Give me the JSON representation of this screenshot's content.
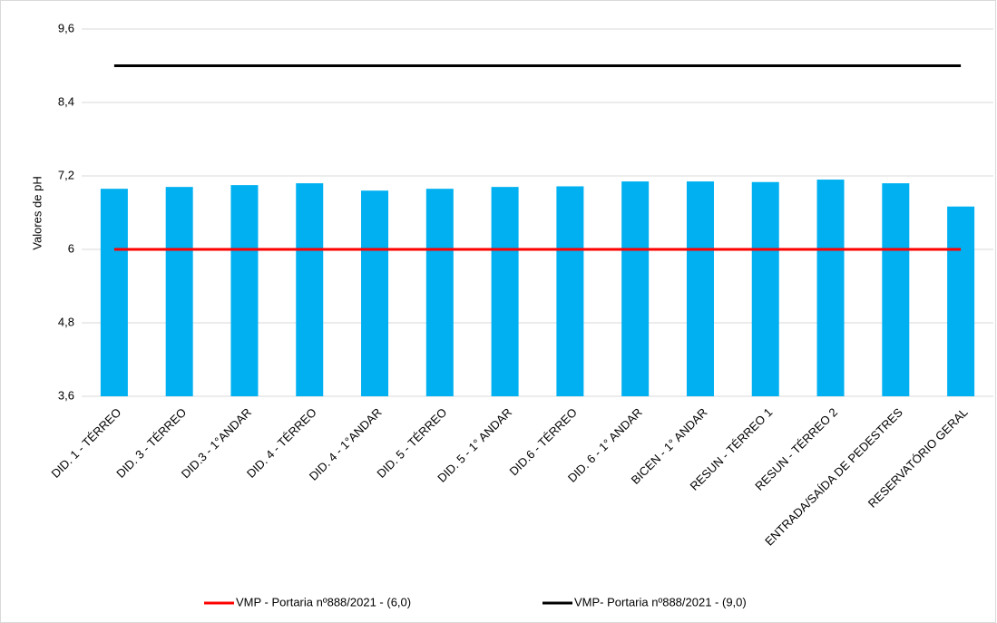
{
  "chart_data": {
    "type": "bar",
    "y_label": "Valores de pH",
    "categories": [
      "DID. 1 - TÉRREO",
      "DID. 3 - TÉRREO",
      "DID.3 - 1°ANDAR",
      "DID. 4 - TÉRREO",
      "DID. 4 - 1°ANDAR",
      "DID. 5 - TÉRREO",
      "DID. 5 - 1° ANDAR",
      "DID.6 - TÉRREO",
      "DID. 6 - 1° ANDAR",
      "BICEN - 1° ANDAR",
      "RESUN - TÉRREO 1",
      "RESUN - TÉRREO 2",
      "ENTRADA/SAÍDA DE PEDESTRES",
      "RESERVATÓRIO GERAL"
    ],
    "values": [
      6.99,
      7.02,
      7.05,
      7.08,
      6.96,
      6.99,
      7.02,
      7.03,
      7.11,
      7.11,
      7.1,
      7.14,
      7.08,
      6.7
    ],
    "color": "#00b0f0",
    "series": [
      {
        "name": "VMP - Portaria nº888/2021  - (6,0)",
        "color": "#ff0000",
        "values": [
          6,
          6,
          6,
          6,
          6,
          6,
          6,
          6,
          6,
          6,
          6,
          6,
          6,
          6
        ]
      },
      {
        "name": "VMP- Portaria nº888/2021 - (9,0)",
        "color": "#000000",
        "values": [
          9,
          9,
          9,
          9,
          9,
          9,
          9,
          9,
          9,
          9,
          9,
          9,
          9,
          9
        ]
      }
    ],
    "ylim": [
      3.6,
      9.6
    ],
    "yticks": [
      {
        "value": 3.6,
        "label": "3,6"
      },
      {
        "value": 4.8,
        "label": "4,8"
      },
      6,
      {
        "value": 7.2,
        "label": "7,2"
      },
      {
        "value": 8.4,
        "label": "8,4"
      },
      {
        "value": 9.6,
        "label": "9,6"
      }
    ],
    "grid": true,
    "legend": "bottom"
  }
}
